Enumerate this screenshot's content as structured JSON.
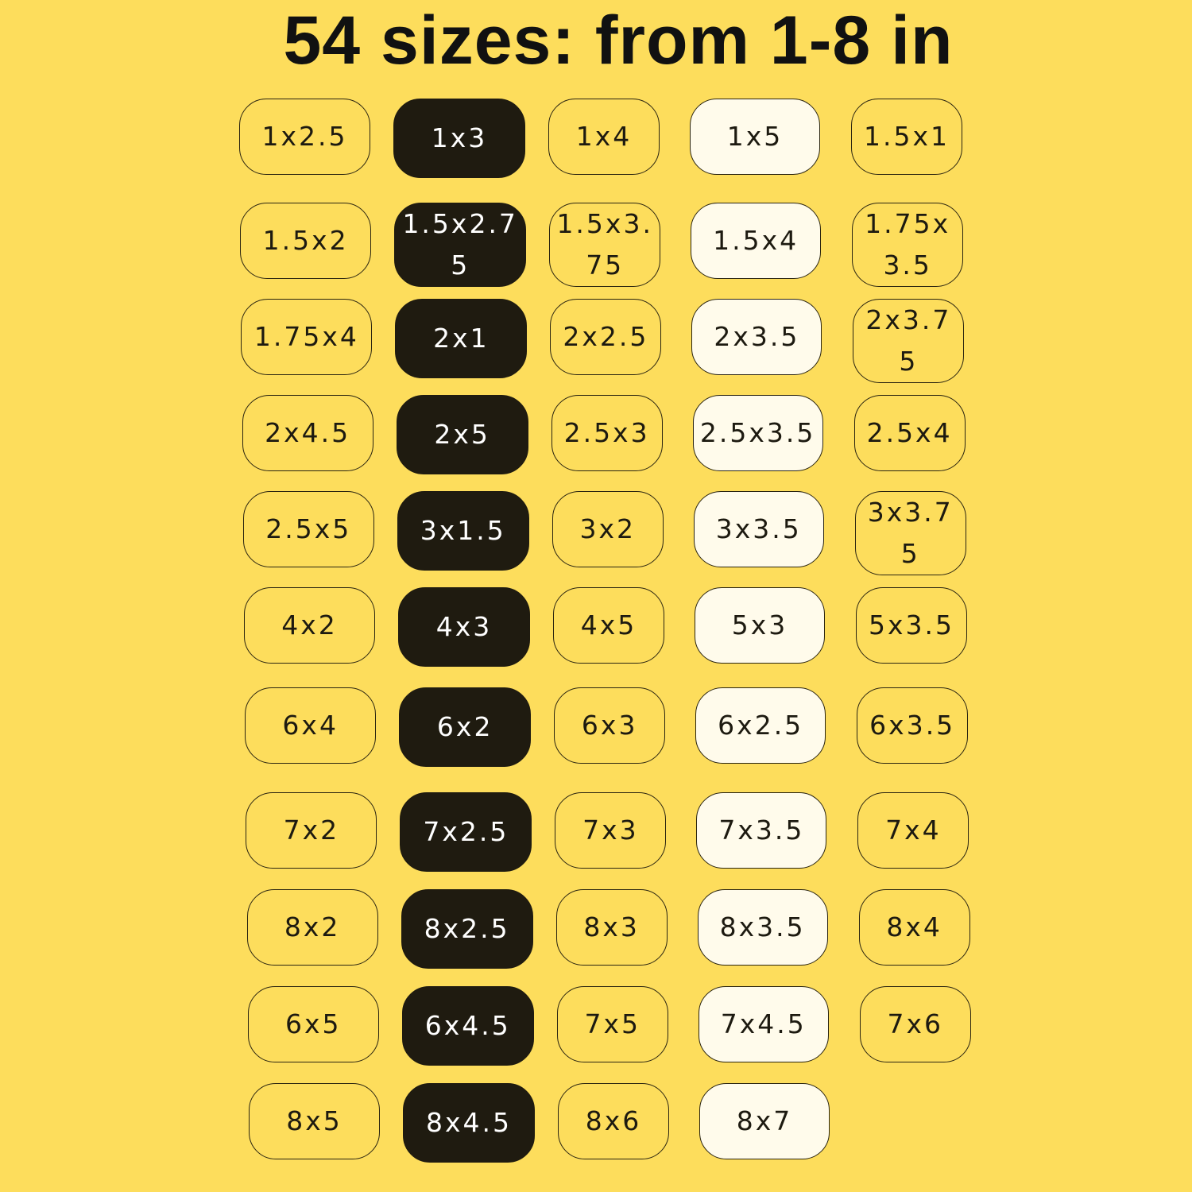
{
  "title": "54 sizes: from 1-8 in",
  "colors": {
    "background": "#fddd5c",
    "dark_chip": "#1f1b10",
    "light_chip": "#fffbeb",
    "outline_chip_border": "#2a2410"
  },
  "columns": [
    {
      "style": "outline",
      "sizes": [
        "1x2.5",
        "1.5x2",
        "1.75x4",
        "2x4.5",
        "2.5x5",
        "4x2",
        "6x4",
        "7x2",
        "8x2",
        "6x5",
        "8x5"
      ]
    },
    {
      "style": "dark",
      "sizes": [
        "1x3",
        "1.5x2.75",
        "2x1",
        "2x5",
        "3x1.5",
        "4x3",
        "6x2",
        "7x2.5",
        "8x2.5",
        "6x4.5",
        "8x4.5"
      ]
    },
    {
      "style": "outline",
      "sizes": [
        "1x4",
        "1.5x3.75",
        "2x2.5",
        "2.5x3",
        "3x2",
        "4x5",
        "6x3",
        "7x3",
        "8x3",
        "7x5",
        "8x6"
      ]
    },
    {
      "style": "light",
      "sizes": [
        "1x5",
        "1.5x4",
        "2x3.5",
        "2.5x3.5",
        "3x3.5",
        "5x3",
        "6x2.5",
        "7x3.5",
        "8x3.5",
        "7x4.5",
        "8x7"
      ]
    },
    {
      "style": "outline",
      "sizes": [
        "1.5x1",
        "1.75x3.5",
        "2x3.75",
        "2.5x4",
        "3x3.75",
        "5x3.5",
        "6x3.5",
        "7x4",
        "8x4",
        "7x6"
      ]
    }
  ]
}
